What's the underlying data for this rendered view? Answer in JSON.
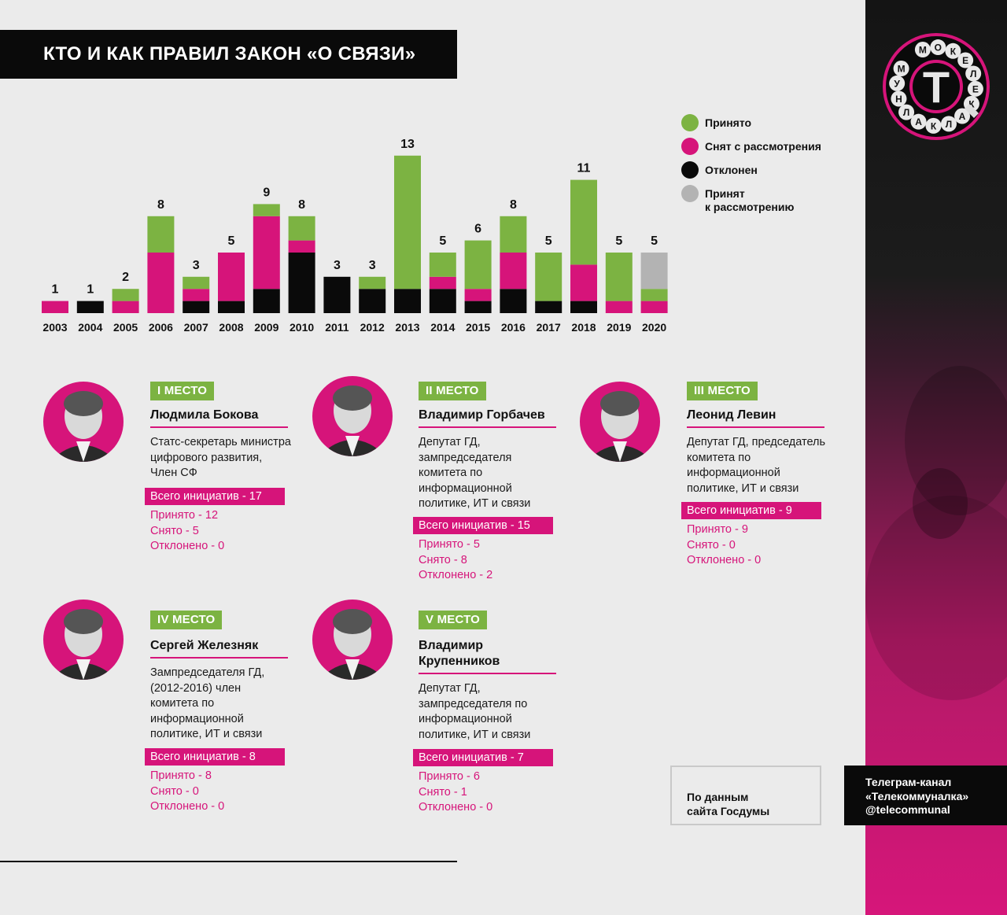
{
  "title": "КТО И КАК ПРАВИЛ ЗАКОН «О СВЯЗИ»",
  "logo": {
    "letters": [
      "М",
      "О",
      "К",
      "Е",
      "Л",
      "Е",
      "К",
      "А",
      "Л",
      "К",
      "А",
      "Л",
      "Н",
      "У",
      "М"
    ],
    "center": "Т"
  },
  "colors": {
    "accepted": "#7cb342",
    "withdrawn": "#d6147a",
    "rejected": "#0a0a0a",
    "pending": "#b3b3b3"
  },
  "legend": [
    {
      "key": "accepted",
      "label": "Принято"
    },
    {
      "key": "withdrawn",
      "label": "Снят с рассмотрения"
    },
    {
      "key": "rejected",
      "label": "Отклонен"
    },
    {
      "key": "pending",
      "label": "Принят\nк рассмотрению"
    }
  ],
  "chart_data": {
    "type": "bar",
    "stacked": true,
    "categories": [
      "2003",
      "2004",
      "2005",
      "2006",
      "2007",
      "2008",
      "2009",
      "2010",
      "2011",
      "2012",
      "2013",
      "2014",
      "2015",
      "2016",
      "2017",
      "2018",
      "2019",
      "2020"
    ],
    "totals": [
      1,
      1,
      2,
      8,
      3,
      5,
      9,
      8,
      3,
      3,
      13,
      5,
      6,
      8,
      5,
      11,
      5,
      5
    ],
    "series": [
      {
        "name": "Отклонен",
        "color_key": "rejected",
        "values": [
          0,
          1,
          0,
          0,
          1,
          1,
          2,
          5,
          3,
          2,
          2,
          2,
          1,
          2,
          1,
          1,
          0,
          0
        ]
      },
      {
        "name": "Снят с рассмотрения",
        "color_key": "withdrawn",
        "values": [
          1,
          0,
          1,
          5,
          1,
          4,
          6,
          1,
          0,
          0,
          0,
          1,
          1,
          3,
          0,
          3,
          1,
          1
        ]
      },
      {
        "name": "Принято",
        "color_key": "accepted",
        "values": [
          0,
          0,
          1,
          3,
          1,
          0,
          1,
          2,
          0,
          1,
          11,
          2,
          4,
          3,
          4,
          7,
          4,
          1
        ]
      },
      {
        "name": "Принят к рассмотрению",
        "color_key": "pending",
        "values": [
          0,
          0,
          0,
          0,
          0,
          0,
          0,
          0,
          0,
          0,
          0,
          0,
          0,
          0,
          0,
          0,
          0,
          3
        ]
      }
    ],
    "ylim": [
      0,
      13
    ],
    "grid": false,
    "legend_position": "right"
  },
  "people": [
    {
      "place": "I МЕСТО",
      "name": "Людмила Бокова",
      "role": "Статс-секретарь министра цифрового развития, Член СФ",
      "total": "Всего инициатив - 17",
      "stats": [
        "Принято - 12",
        "Снято - 5",
        "Отклонено - 0"
      ]
    },
    {
      "place": "II МЕСТО",
      "name": "Владимир Горбачев",
      "role": "Депутат ГД, зампредседателя комитета по информационной политике, ИТ и связи",
      "total": "Всего инициатив - 15",
      "stats": [
        "Принято - 5",
        "Снято - 8",
        "Отклонено - 2"
      ]
    },
    {
      "place": "III МЕСТО",
      "name": "Леонид Левин",
      "role": "Депутат ГД, председатель комитета по информационной политике, ИТ и связи",
      "total": "Всего инициатив - 9",
      "stats": [
        "Принято - 9",
        "Снято - 0",
        "Отклонено - 0"
      ]
    },
    {
      "place": "IV МЕСТО",
      "name": "Сергей Железняк",
      "role": "Зампредседателя ГД, (2012-2016) член комитета по информационной политике, ИТ и связи",
      "total": "Всего инициатив - 8",
      "stats": [
        "Принято - 8",
        "Снято - 0",
        "Отклонено - 0"
      ]
    },
    {
      "place": "V МЕСТО",
      "name": "Владимир Крупенников",
      "role": "Депутат ГД, зампредседателя по информационной политике, ИТ и связи",
      "total": "Всего инициатив - 7",
      "stats": [
        "Принято - 6",
        "Снято - 1",
        "Отклонено - 0"
      ]
    }
  ],
  "source": "По данным\nсайта Госдумы",
  "telegram": "Телеграм-канал\n«Телекоммуналка»\n@telecommunal"
}
